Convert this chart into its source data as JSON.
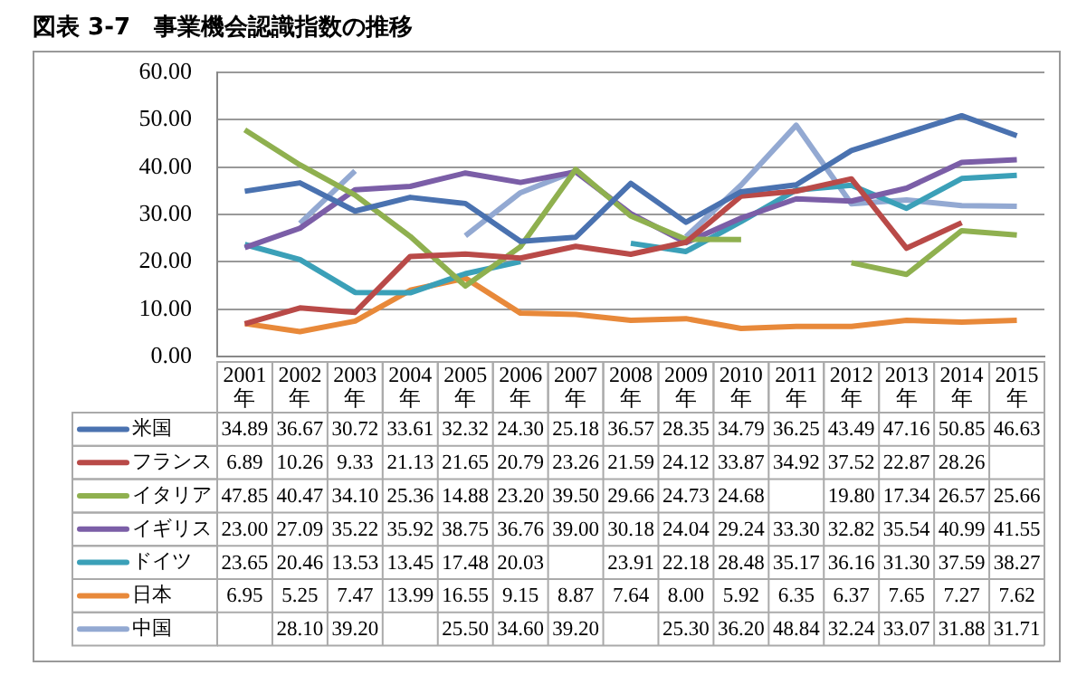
{
  "chart_data": {
    "type": "line",
    "title": "図表 3-7　事業機会認識指数の推移",
    "categories": [
      "2001年",
      "2002年",
      "2003年",
      "2004年",
      "2005年",
      "2006年",
      "2007年",
      "2008年",
      "2009年",
      "2010年",
      "2011年",
      "2012年",
      "2013年",
      "2014年",
      "2015年"
    ],
    "ylim": [
      0,
      60
    ],
    "yticks": [
      {
        "value": 0,
        "label": "0.00"
      },
      {
        "value": 10,
        "label": "10.00"
      },
      {
        "value": 20,
        "label": "20.00"
      },
      {
        "value": 30,
        "label": "30.00"
      },
      {
        "value": 40,
        "label": "40.00"
      },
      {
        "value": 50,
        "label": "50.00"
      },
      {
        "value": 60,
        "label": "60.00"
      }
    ],
    "grid": "y",
    "legend": "bottom",
    "marker": "none",
    "line_style": "solid",
    "series": [
      {
        "name": "米国",
        "color": "#4a72b0",
        "values": [
          34.89,
          36.67,
          30.72,
          33.61,
          32.32,
          24.3,
          25.18,
          36.57,
          28.35,
          34.79,
          36.25,
          43.49,
          47.16,
          50.85,
          46.63
        ],
        "value_labels": [
          "34.89",
          "36.67",
          "30.72",
          "33.61",
          "32.32",
          "24.30",
          "25.18",
          "36.57",
          "28.35",
          "34.79",
          "36.25",
          "43.49",
          "47.16",
          "50.85",
          "46.63"
        ]
      },
      {
        "name": "フランス",
        "color": "#b94a48",
        "values": [
          6.89,
          10.26,
          9.33,
          21.13,
          21.65,
          20.79,
          23.26,
          21.59,
          24.12,
          33.87,
          34.92,
          37.52,
          22.87,
          28.26,
          null
        ],
        "value_labels": [
          "6.89",
          "10.26",
          "9.33",
          "21.13",
          "21.65",
          "20.79",
          "23.26",
          "21.59",
          "24.12",
          "33.87",
          "34.92",
          "37.52",
          "22.87",
          "28.26",
          null
        ]
      },
      {
        "name": "イタリア",
        "color": "#8fb04f",
        "values": [
          47.85,
          40.47,
          34.1,
          25.36,
          14.88,
          23.2,
          39.5,
          29.66,
          24.73,
          24.68,
          null,
          19.8,
          17.34,
          26.57,
          25.66
        ],
        "value_labels": [
          "47.85",
          "40.47",
          "34.10",
          "25.36",
          "14.88",
          "23.20",
          "39.50",
          "29.66",
          "24.73",
          "24.68",
          null,
          "19.80",
          "17.34",
          "26.57",
          "25.66"
        ]
      },
      {
        "name": "イギリス",
        "color": "#7b5ea7",
        "values": [
          23.0,
          27.09,
          35.22,
          35.92,
          38.75,
          36.76,
          39.0,
          30.18,
          24.04,
          29.24,
          33.3,
          32.82,
          35.54,
          40.99,
          41.55
        ],
        "value_labels": [
          "23.00",
          "27.09",
          "35.22",
          "35.92",
          "38.75",
          "36.76",
          "39.00",
          "30.18",
          "24.04",
          "29.24",
          "33.30",
          "32.82",
          "35.54",
          "40.99",
          "41.55"
        ]
      },
      {
        "name": "ドイツ",
        "color": "#3ba0b8",
        "values": [
          23.65,
          20.46,
          13.53,
          13.45,
          17.48,
          20.03,
          null,
          23.91,
          22.18,
          28.48,
          35.17,
          36.16,
          31.3,
          37.59,
          38.27
        ],
        "value_labels": [
          "23.65",
          "20.46",
          "13.53",
          "13.45",
          "17.48",
          "20.03",
          null,
          "23.91",
          "22.18",
          "28.48",
          "35.17",
          "36.16",
          "31.30",
          "37.59",
          "38.27"
        ]
      },
      {
        "name": "日本",
        "color": "#e8893a",
        "values": [
          6.95,
          5.25,
          7.47,
          13.99,
          16.55,
          9.15,
          8.87,
          7.64,
          8.0,
          5.92,
          6.35,
          6.37,
          7.65,
          7.27,
          7.62
        ],
        "value_labels": [
          "6.95",
          "5.25",
          "7.47",
          "13.99",
          "16.55",
          "9.15",
          "8.87",
          "7.64",
          "8.00",
          "5.92",
          "6.35",
          "6.37",
          "7.65",
          "7.27",
          "7.62"
        ]
      },
      {
        "name": "中国",
        "color": "#93a9d2",
        "values": [
          null,
          28.1,
          39.2,
          null,
          25.5,
          34.6,
          39.2,
          null,
          25.3,
          36.2,
          48.84,
          32.24,
          33.07,
          31.88,
          31.71
        ],
        "value_labels": [
          null,
          "28.10",
          "39.20",
          null,
          "25.50",
          "34.60",
          "39.20",
          null,
          "25.30",
          "36.20",
          "48.84",
          "32.24",
          "33.07",
          "31.88",
          "31.71"
        ]
      }
    ]
  }
}
